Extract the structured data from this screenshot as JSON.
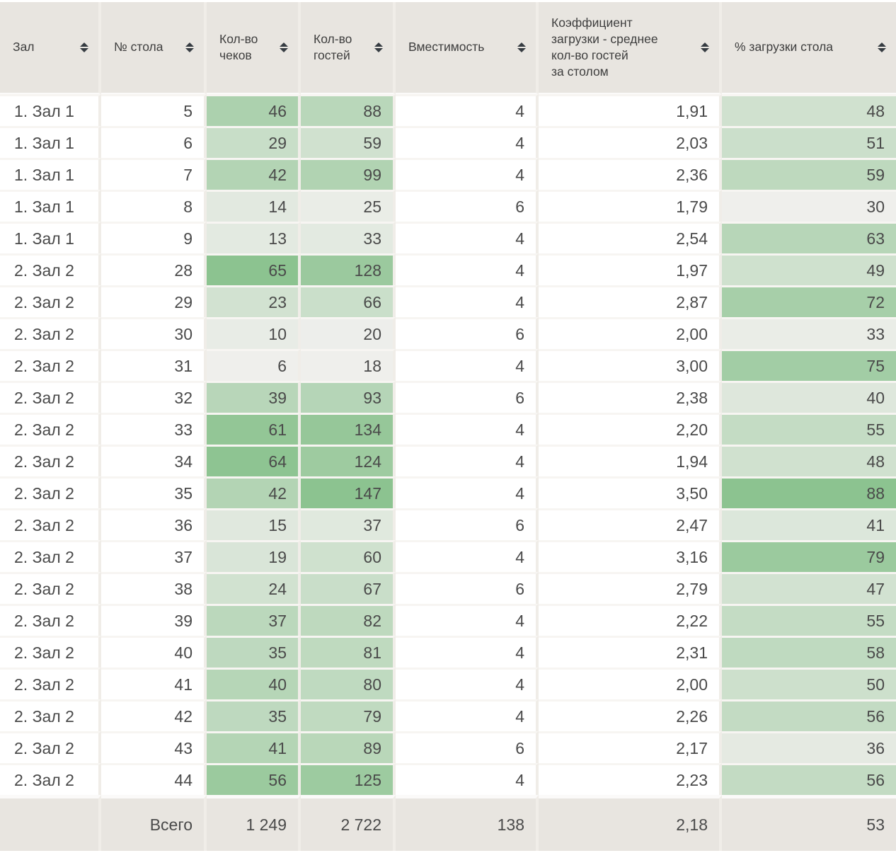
{
  "table": {
    "columns": [
      {
        "id": "hall",
        "label_lines": [
          "Зал"
        ],
        "align": "left",
        "heatmap": false,
        "sortable": true
      },
      {
        "id": "table-no",
        "label_lines": [
          "№ стола"
        ],
        "align": "right",
        "heatmap": false,
        "sortable": true
      },
      {
        "id": "checks",
        "label_lines": [
          "Кол-во",
          "чеков"
        ],
        "align": "right",
        "heatmap": true,
        "sortable": true
      },
      {
        "id": "guests",
        "label_lines": [
          "Кол-во",
          "гостей"
        ],
        "align": "right",
        "heatmap": true,
        "sortable": true
      },
      {
        "id": "capacity",
        "label_lines": [
          "Вместимость"
        ],
        "align": "right",
        "heatmap": false,
        "sortable": true
      },
      {
        "id": "load-coef",
        "label_lines": [
          "Коэффициент",
          "загрузки - среднее",
          "кол-во гостей",
          "за столом"
        ],
        "align": "right",
        "heatmap": false,
        "sortable": true
      },
      {
        "id": "load-pct",
        "label_lines": [
          "% загрузки стола"
        ],
        "align": "right",
        "heatmap": true,
        "sortable": true
      }
    ],
    "rows": [
      [
        "1. Зал 1",
        "5",
        "46",
        "88",
        "4",
        "1,91",
        "48"
      ],
      [
        "1. Зал 1",
        "6",
        "29",
        "59",
        "4",
        "2,03",
        "51"
      ],
      [
        "1. Зал 1",
        "7",
        "42",
        "99",
        "4",
        "2,36",
        "59"
      ],
      [
        "1. Зал 1",
        "8",
        "14",
        "25",
        "6",
        "1,79",
        "30"
      ],
      [
        "1. Зал 1",
        "9",
        "13",
        "33",
        "4",
        "2,54",
        "63"
      ],
      [
        "2. Зал 2",
        "28",
        "65",
        "128",
        "4",
        "1,97",
        "49"
      ],
      [
        "2. Зал 2",
        "29",
        "23",
        "66",
        "4",
        "2,87",
        "72"
      ],
      [
        "2. Зал 2",
        "30",
        "10",
        "20",
        "6",
        "2,00",
        "33"
      ],
      [
        "2. Зал 2",
        "31",
        "6",
        "18",
        "4",
        "3,00",
        "75"
      ],
      [
        "2. Зал 2",
        "32",
        "39",
        "93",
        "6",
        "2,38",
        "40"
      ],
      [
        "2. Зал 2",
        "33",
        "61",
        "134",
        "4",
        "2,20",
        "55"
      ],
      [
        "2. Зал 2",
        "34",
        "64",
        "124",
        "4",
        "1,94",
        "48"
      ],
      [
        "2. Зал 2",
        "35",
        "42",
        "147",
        "4",
        "3,50",
        "88"
      ],
      [
        "2. Зал 2",
        "36",
        "15",
        "37",
        "6",
        "2,47",
        "41"
      ],
      [
        "2. Зал 2",
        "37",
        "19",
        "60",
        "4",
        "3,16",
        "79"
      ],
      [
        "2. Зал 2",
        "38",
        "24",
        "67",
        "6",
        "2,79",
        "47"
      ],
      [
        "2. Зал 2",
        "39",
        "37",
        "82",
        "4",
        "2,22",
        "55"
      ],
      [
        "2. Зал 2",
        "40",
        "35",
        "81",
        "4",
        "2,31",
        "58"
      ],
      [
        "2. Зал 2",
        "41",
        "40",
        "80",
        "4",
        "2,00",
        "50"
      ],
      [
        "2. Зал 2",
        "42",
        "35",
        "79",
        "4",
        "2,26",
        "56"
      ],
      [
        "2. Зал 2",
        "43",
        "41",
        "89",
        "6",
        "2,17",
        "36"
      ],
      [
        "2. Зал 2",
        "44",
        "56",
        "125",
        "4",
        "2,23",
        "56"
      ]
    ],
    "footer": {
      "label": "Всего",
      "values": [
        "1 249",
        "2 722",
        "138",
        "2,18",
        "53"
      ]
    },
    "heatmap": {
      "low_color": "#efefec",
      "high_color": "#8cc390"
    }
  },
  "colors": {
    "header_bg": "#e8e5e0",
    "row_bg": "#ffffff",
    "text": "#4a4a4a",
    "header_text": "#3e3e3e",
    "col_divider": "#f0ede8",
    "row_divider": "#f7f5f2",
    "section_divider": "#fbfaf9",
    "sort_icon": "#363c42"
  }
}
